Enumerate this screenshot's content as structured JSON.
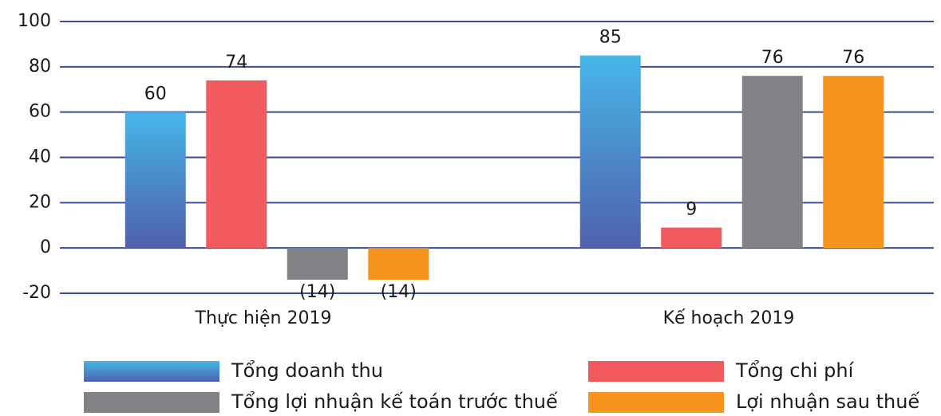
{
  "chart_data": {
    "type": "bar",
    "categories": [
      "Thực hiện 2019",
      "Kế hoạch 2019"
    ],
    "series": [
      {
        "name": "Tổng doanh thu",
        "color": "#46b6e8",
        "gradient_to": "#5060ad",
        "values": [
          60,
          85
        ]
      },
      {
        "name": "Tổng chi phí",
        "color": "#f15a5e",
        "values": [
          74,
          9
        ]
      },
      {
        "name": "Tổng lợi nhuận kế toán trước thuế",
        "color": "#818285",
        "values": [
          -14,
          76
        ],
        "value_labels": [
          "(14)",
          "76"
        ]
      },
      {
        "name": "Lợi nhuận sau thuế",
        "color": "#f7941d",
        "values": [
          -14,
          76
        ],
        "value_labels": [
          "(14)",
          "76"
        ]
      }
    ],
    "ylim": [
      -20,
      100
    ],
    "yticks": [
      -20,
      0,
      20,
      40,
      60,
      80,
      100
    ],
    "grid": true,
    "grid_color": "#3d4b9b"
  }
}
